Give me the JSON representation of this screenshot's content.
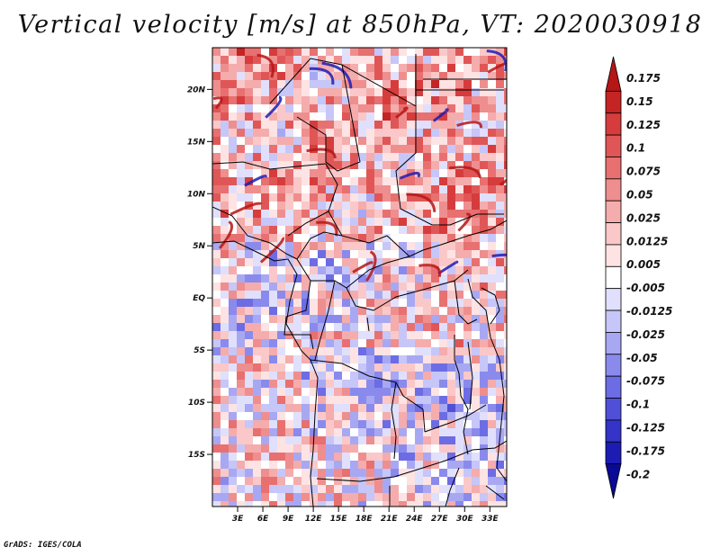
{
  "title": "Vertical velocity [m/s] at 850hPa, VT: 2020030918",
  "credit": "GrADS: IGES/COLA",
  "map": {
    "lon_range": [
      0,
      35
    ],
    "lat_range": [
      -20,
      24
    ],
    "lat_ticks": [
      {
        "value": 20,
        "label": "20N"
      },
      {
        "value": 15,
        "label": "15N"
      },
      {
        "value": 10,
        "label": "10N"
      },
      {
        "value": 5,
        "label": "5N"
      },
      {
        "value": 0,
        "label": "EQ"
      },
      {
        "value": -5,
        "label": "5S"
      },
      {
        "value": -10,
        "label": "10S"
      },
      {
        "value": -15,
        "label": "15S"
      }
    ],
    "lon_ticks": [
      {
        "value": 3,
        "label": "3E"
      },
      {
        "value": 6,
        "label": "6E"
      },
      {
        "value": 9,
        "label": "9E"
      },
      {
        "value": 12,
        "label": "12E"
      },
      {
        "value": 15,
        "label": "15E"
      },
      {
        "value": 18,
        "label": "18E"
      },
      {
        "value": 21,
        "label": "21E"
      },
      {
        "value": 24,
        "label": "24E"
      },
      {
        "value": 27,
        "label": "27E"
      },
      {
        "value": 30,
        "label": "30E"
      },
      {
        "value": 33,
        "label": "33E"
      }
    ]
  },
  "colorbar": {
    "labels": [
      "0.175",
      "0.15",
      "0.125",
      "0.1",
      "0.075",
      "0.05",
      "0.025",
      "0.0125",
      "0.005",
      "-0.005",
      "-0.0125",
      "-0.025",
      "-0.05",
      "-0.075",
      "-0.1",
      "-0.125",
      "-0.175",
      "-0.2"
    ],
    "colors": [
      "#b51616",
      "#c42424",
      "#d63c3c",
      "#e05656",
      "#e87070",
      "#ef8e8e",
      "#f5acac",
      "#fac8c8",
      "#fde3e3",
      "#ffffff",
      "#e0e0fc",
      "#c6c6f8",
      "#a8a8f2",
      "#8a8aec",
      "#6c6ce4",
      "#4f4fd8",
      "#3434c8",
      "#1c1cb4",
      "#0a0a96"
    ]
  }
}
